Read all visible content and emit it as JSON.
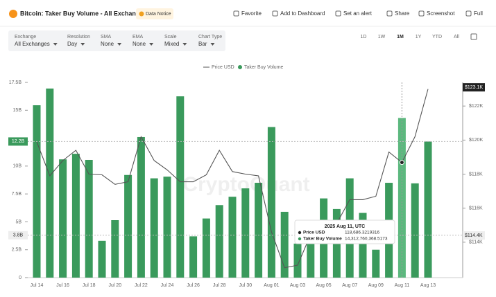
{
  "header": {
    "title": "Bitcoin: Taker Buy Volume - All Exchanges",
    "notice": "Data Notice",
    "actions": [
      "Favorite",
      "Add to Dashboard",
      "Set an alert",
      "Share",
      "Screenshot",
      "Full"
    ]
  },
  "filters": [
    {
      "label": "Exchange",
      "value": "All Exchanges"
    },
    {
      "label": "Resolution",
      "value": "Day"
    },
    {
      "label": "SMA",
      "value": "None"
    },
    {
      "label": "EMA",
      "value": "None"
    },
    {
      "label": "Scale",
      "value": "Mixed"
    },
    {
      "label": "Chart Type",
      "value": "Bar"
    }
  ],
  "ranges": [
    "1D",
    "1W",
    "1M",
    "1Y",
    "YTD",
    "All"
  ],
  "chart_data": {
    "type": "bar",
    "watermark": "CryptoQuant",
    "categories": [
      "Jul 14",
      null,
      "Jul 16",
      null,
      "Jul 18",
      null,
      "Jul 20",
      null,
      "Jul 22",
      null,
      "Jul 24",
      null,
      "Jul 26",
      null,
      "Jul 28",
      null,
      "Jul 30",
      null,
      "Aug 01",
      null,
      "Aug 03",
      null,
      "Aug 05",
      null,
      "Aug 07",
      null,
      "Aug 09",
      null,
      "Aug 11",
      null,
      "Aug 13"
    ],
    "series": [
      {
        "name": "Price USD",
        "type": "line",
        "axis": "y2",
        "color": "#555555",
        "values": [
          119900,
          117900,
          118800,
          119400,
          118000,
          117960,
          117400,
          117550,
          120200,
          118800,
          118250,
          117550,
          117550,
          117960,
          119400,
          118150,
          118000,
          117900,
          114600,
          112500,
          112650,
          114450,
          114300,
          115100,
          116500,
          116500,
          116700,
          119300,
          118686.3219316,
          120200,
          123000
        ]
      },
      {
        "name": "Taker Buy Volume",
        "type": "bar",
        "color": "#3a9a5c",
        "values": [
          15.45,
          16.95,
          10.6,
          11.1,
          10.55,
          3.3,
          5.15,
          9.2,
          12.6,
          8.9,
          9.05,
          16.25,
          3.7,
          5.3,
          6.5,
          7.25,
          8.0,
          8.5,
          13.5,
          5.9,
          3.05,
          3.2,
          7.1,
          6.15,
          8.9,
          5.8,
          2.5,
          8.5,
          14.3127603685173,
          8.45,
          12.2
        ]
      }
    ],
    "ylim": [
      0,
      17.5
    ],
    "yticks": [
      0,
      {
        "value": 2.5,
        "label": "2.5B"
      },
      {
        "value": 5,
        "label": "5B"
      },
      {
        "value": 7.5,
        "label": "7.5B"
      },
      {
        "value": 10,
        "label": "10B"
      },
      {
        "value": 15,
        "label": "15B"
      },
      {
        "value": 17.5,
        "label": "17.5B"
      }
    ],
    "y2lim": [
      111920,
      123390
    ],
    "y2ticks": [
      {
        "value": 114000,
        "label": "$114K"
      },
      {
        "value": 116000,
        "label": "$116K"
      },
      {
        "value": 118000,
        "label": "$118K"
      },
      {
        "value": 120000,
        "label": "$120K"
      },
      {
        "value": 122000,
        "label": "$122K"
      }
    ],
    "axis_highlights": [
      {
        "value": 12.2,
        "label": "12.2B"
      },
      {
        "value": 3.8,
        "label": "3.8B"
      }
    ],
    "y2_highlights": [
      {
        "value": 123100,
        "label": "$123.1K"
      },
      {
        "value": 114400,
        "label": "$114.4K"
      }
    ],
    "highlight_index": 28,
    "tooltip": {
      "date": "2025 Aug 11, UTC",
      "rows": [
        {
          "name": "Price USD",
          "value": "118,686.3219316"
        },
        {
          "name": "Taker Buy Volume",
          "value": "14,312,760,368.5173"
        }
      ]
    }
  }
}
